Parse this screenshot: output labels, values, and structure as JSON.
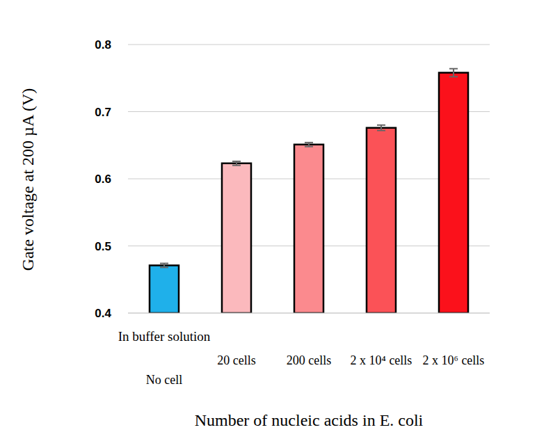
{
  "chart_data": {
    "type": "bar",
    "categories": [
      "No cell",
      "20 cells",
      "200 cells",
      "2 x 10⁴ cells",
      "2 x 10⁶ cells"
    ],
    "values": [
      0.471,
      0.623,
      0.651,
      0.676,
      0.758
    ],
    "errors": [
      0.003,
      0.003,
      0.003,
      0.004,
      0.006
    ],
    "colors": [
      "#1fb0ea",
      "#fbb9bd",
      "#fb8a8e",
      "#fb5257",
      "#fb111b"
    ],
    "annotations": [
      "In buffer solution"
    ],
    "y_label": "Gate voltage at 200 µA (V)",
    "x_label": "Number of nucleic acids in E. coli",
    "ylim": [
      0.4,
      0.8
    ],
    "yticks": [
      0.4,
      0.5,
      0.6,
      0.7,
      0.8
    ],
    "grid": true
  }
}
